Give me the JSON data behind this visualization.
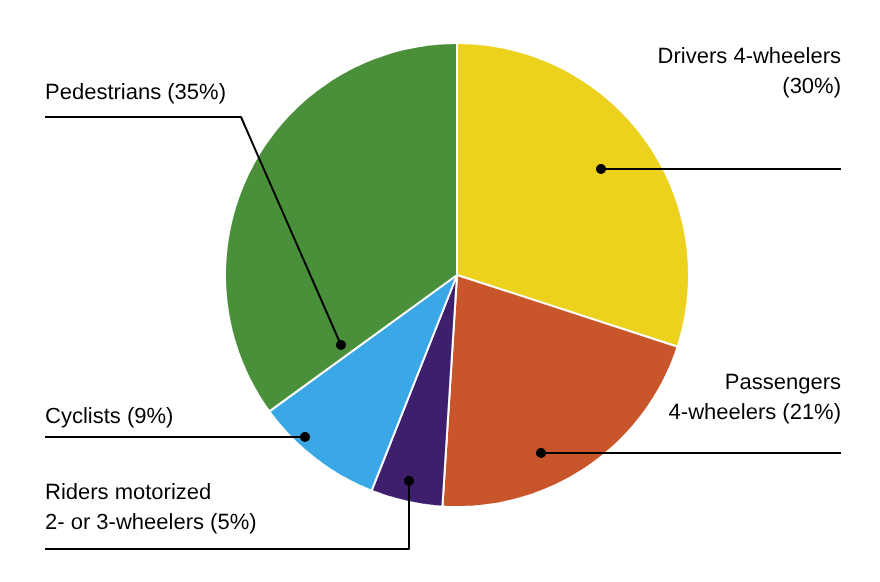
{
  "chart_data": {
    "type": "pie",
    "categories": [
      "Drivers 4-wheelers",
      "Passengers 4-wheelers",
      "Riders motorized 2- or 3-wheelers",
      "Cyclists",
      "Pedestrians"
    ],
    "values": [
      30,
      21,
      5,
      9,
      35
    ],
    "value_labels": [
      "(30%)",
      "(21%)",
      "(5%)",
      "(9%)",
      "(35%)"
    ],
    "colors": [
      "#ecd21c",
      "#c9562b",
      "#3d1f6e",
      "#3aa7e6",
      "#4a8f3a"
    ]
  }
}
